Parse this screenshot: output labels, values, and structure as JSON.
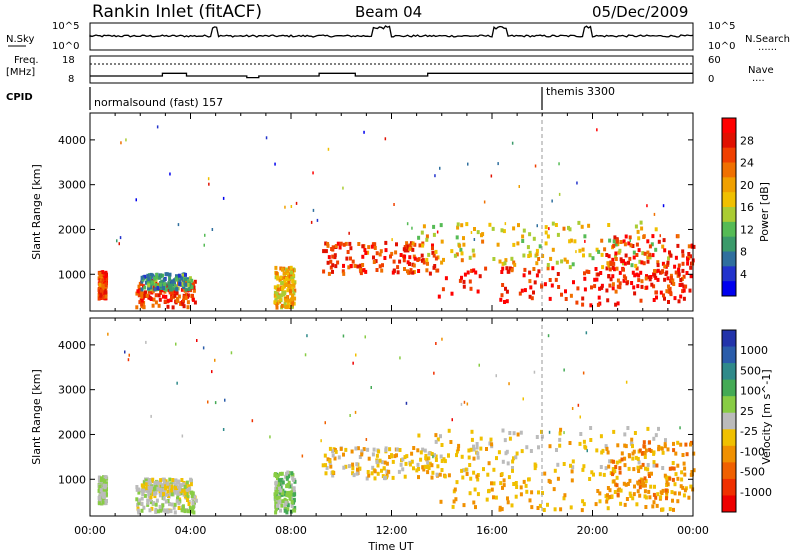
{
  "header": {
    "station": "Rankin Inlet (fitACF)",
    "beam": "Beam 04",
    "date": "05/Dec/2009"
  },
  "noise_panel": {
    "left_label": "N.Sky",
    "left_ticks": [
      "10^5",
      "10^0"
    ],
    "right_ticks": [
      "10^5",
      "10^0"
    ],
    "right_label": "N.Search",
    "right_legend": "......"
  },
  "freq_panel": {
    "left_label_1": "Freq.",
    "left_label_2": "[MHz]",
    "left_ticks": [
      "18",
      "8"
    ],
    "right_ticks": [
      "60",
      "0"
    ],
    "right_label": "Nave",
    "right_legend": "....",
    "freq_series": [
      10.6,
      10.6,
      10.6,
      10.6,
      10.6,
      10.6,
      11.6,
      11.6,
      10.6,
      10.6,
      10.6,
      10.6,
      10.6,
      10.0,
      10.6,
      10.6,
      10.6,
      10.6,
      10.6,
      11.6,
      11.6,
      11.6,
      10.6,
      10.6,
      10.6,
      10.6,
      10.6,
      10.6,
      11.6,
      11.6,
      11.6,
      11.6,
      11.6,
      11.6,
      11.6,
      11.6,
      11.6,
      11.6,
      11.6,
      11.6,
      11.6,
      11.6,
      11.6,
      11.6,
      11.6,
      11.6,
      11.6,
      11.6,
      11.6,
      11.6
    ]
  },
  "cpid": {
    "label": "CPID",
    "mode_1": "normalsound (fast) 157",
    "mode_2": "themis 3300",
    "switch_time_h": 18.0
  },
  "time_axis": {
    "ticks": [
      "00:00",
      "04:00",
      "08:00",
      "12:00",
      "16:00",
      "20:00",
      "00:00"
    ],
    "label": "Time UT",
    "range_h": [
      0,
      24
    ]
  },
  "panels": [
    {
      "name": "power",
      "ylabel": "Slant Range [km]",
      "yticks": [
        "1000",
        "2000",
        "3000",
        "4000"
      ],
      "ylim_km": [
        180,
        4600
      ],
      "colorbar_label": "Power [dB]",
      "colorbar_ticks": [
        "28",
        "24",
        "20",
        "16",
        "12",
        "8",
        "4"
      ],
      "colors": [
        "#0000ee",
        "#2233cc",
        "#2f6f9e",
        "#3a9a6a",
        "#55bb55",
        "#aacc33",
        "#f0c000",
        "#f0a000",
        "#f07000",
        "#f04000",
        "#e01000",
        "#ff0000"
      ]
    },
    {
      "name": "velocity",
      "ylabel": "Slant Range [km]",
      "yticks": [
        "1000",
        "2000",
        "3000",
        "4000"
      ],
      "ylim_km": [
        180,
        4600
      ],
      "colorbar_label": "Velocity [m s^-1]",
      "colorbar_ticks": [
        "1000",
        "500",
        "100",
        "25",
        "-25",
        "-100",
        "-500",
        "-1000"
      ],
      "colors": [
        "#2233aa",
        "#2a5caa",
        "#2f8a8a",
        "#44aa55",
        "#88cc44",
        "#bbbbbb",
        "#f0c000",
        "#f09000",
        "#f06000",
        "#f03000",
        "#ee0000"
      ]
    }
  ],
  "chart_data": {
    "type": "heatmap",
    "title": "Rankin Inlet (fitACF) Beam 04 05/Dec/2009",
    "xlabel": "Time UT",
    "ylabel": "Slant Range [km]",
    "x_range_h": [
      0,
      24
    ],
    "y_range_km": [
      180,
      4600
    ],
    "echo_regions": [
      {
        "t_start": 0.3,
        "t_end": 0.6,
        "r_min": 500,
        "r_max": 1100,
        "power_db": 25,
        "velocity": 100
      },
      {
        "t_start": 1.8,
        "t_end": 4.2,
        "r_min": 300,
        "r_max": 900,
        "power_db": 26,
        "velocity": 50
      },
      {
        "t_start": 2.0,
        "t_end": 4.0,
        "r_min": 700,
        "r_max": 1050,
        "power_db": 8,
        "velocity": -50
      },
      {
        "t_start": 7.3,
        "t_end": 8.1,
        "r_min": 300,
        "r_max": 1200,
        "power_db": 18,
        "velocity": 200
      },
      {
        "t_start": 9.2,
        "t_end": 13.8,
        "r_min": 1050,
        "r_max": 1750,
        "power_db": 25,
        "velocity": -200
      },
      {
        "t_start": 13.8,
        "t_end": 23.8,
        "r_min": 350,
        "r_max": 1200,
        "power_db": 28,
        "velocity": -300
      },
      {
        "t_start": 13.0,
        "t_end": 23.0,
        "r_min": 1200,
        "r_max": 2200,
        "power_db": 16,
        "velocity": -150
      },
      {
        "t_start": 20.5,
        "t_end": 24.0,
        "r_min": 600,
        "r_max": 1900,
        "power_db": 26,
        "velocity": -400
      }
    ]
  }
}
